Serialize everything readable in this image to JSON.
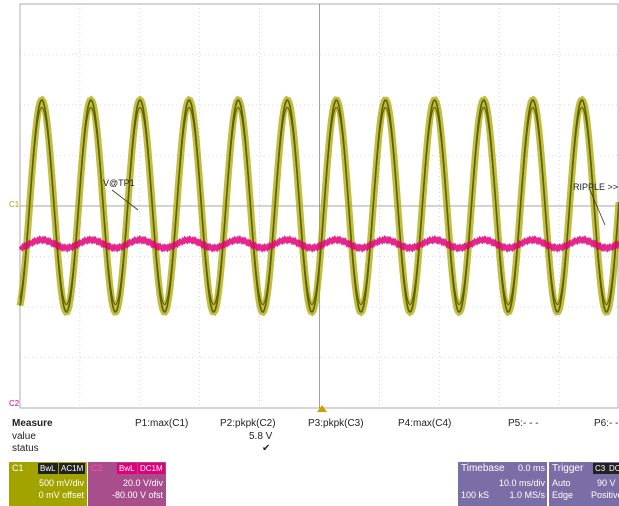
{
  "colors": {
    "c1": "#a9a800",
    "c1_dark": "#5f5f00",
    "c2": "#e0007a",
    "grid": "#bdbdbd",
    "panel_c1": "#a3a300",
    "panel_c2": "#a84e8d",
    "panel_tb": "#7b6ea6"
  },
  "scope": {
    "c1_marker": "C1",
    "c2_marker": "C2",
    "label_vatp1": "V@TP1",
    "label_ripple": "RIPPLE >>",
    "trigger_marker_icon": "triangle-up-icon"
  },
  "measure": {
    "title": "Measure",
    "row_value": "value",
    "row_status": "status",
    "params": [
      {
        "label": "P1:max(C1)",
        "value": "",
        "status": ""
      },
      {
        "label": "P2:pkpk(C2)",
        "value": "5.8 V",
        "status": "✔"
      },
      {
        "label": "P3:pkpk(C3)",
        "value": "",
        "status": ""
      },
      {
        "label": "P4:max(C4)",
        "value": "",
        "status": ""
      },
      {
        "label": "P5:- - -",
        "value": "",
        "status": ""
      },
      {
        "label": "P6:- -",
        "value": "",
        "status": ""
      }
    ]
  },
  "c1_panel": {
    "name": "C1",
    "badge1": "BwL",
    "badge2": "AC1M",
    "scale": "500 mV/div",
    "offset": "0 mV offset"
  },
  "c2_panel": {
    "name": "C2",
    "badge1": "BwL",
    "badge2": "DC1M",
    "scale": "20.0 V/div",
    "offset": "-80.00 V ofst"
  },
  "timebase": {
    "title": "Timebase",
    "delay": "0.0 ms",
    "div": "10.0 ms/div",
    "samples": "100 kS",
    "rate": "1.0 MS/s"
  },
  "trigger": {
    "title": "Trigger",
    "channel": "C3",
    "coupling": "DC",
    "mode": "Auto",
    "level": "90 V",
    "type": "Edge",
    "slope": "Positive"
  },
  "chart_data": {
    "type": "line",
    "grid": true,
    "series": [
      {
        "name": "V@TP1",
        "cycles": 12.2,
        "amplitude_div": 2.1,
        "offset_div": 0
      },
      {
        "name": "RIPPLE",
        "cycles": 12.2,
        "amplitude_div": 0.08,
        "offset_div": -0.75
      }
    ]
  }
}
